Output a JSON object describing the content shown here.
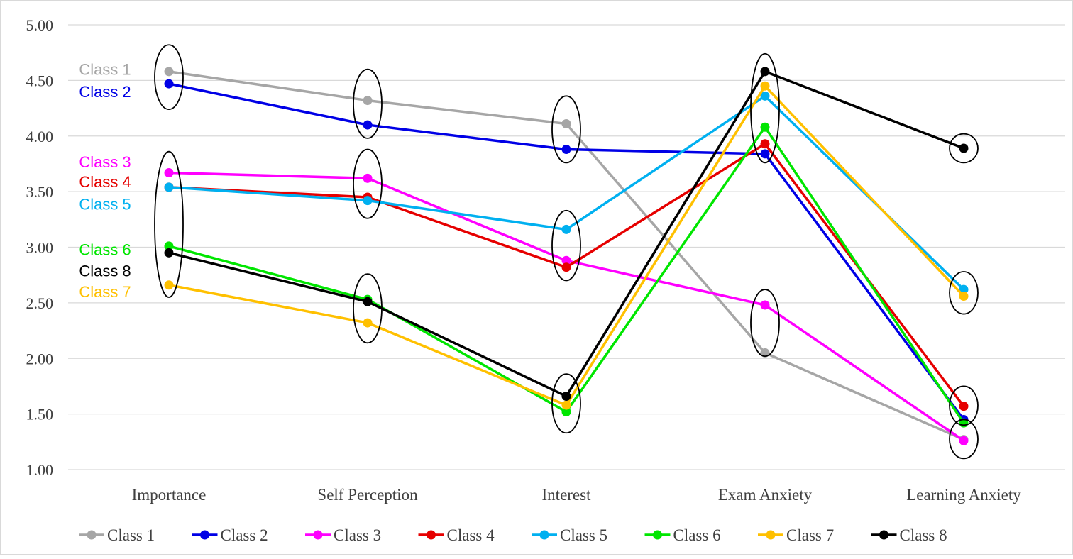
{
  "chart_data": {
    "type": "line",
    "title": "",
    "xlabel": "",
    "ylabel": "",
    "categories": [
      "Importance",
      "Self Perception",
      "Interest",
      "Exam Anxiety",
      "Learning Anxiety"
    ],
    "ylim": [
      1.0,
      5.0
    ],
    "yticks": [
      "1.00",
      "1.50",
      "2.00",
      "2.50",
      "3.00",
      "3.50",
      "4.00",
      "4.50",
      "5.00"
    ],
    "grid": true,
    "legend": "bottom",
    "series": [
      {
        "name": "Class 1",
        "color": "#a6a6a6",
        "values": [
          4.58,
          4.32,
          4.11,
          2.05,
          1.27
        ]
      },
      {
        "name": "Class 2",
        "color": "#0000e6",
        "values": [
          4.47,
          4.1,
          3.88,
          3.84,
          1.45
        ]
      },
      {
        "name": "Class 3",
        "color": "#ff00ff",
        "values": [
          3.67,
          3.62,
          2.88,
          2.48,
          1.26
        ]
      },
      {
        "name": "Class 4",
        "color": "#e60000",
        "values": [
          3.54,
          3.45,
          2.82,
          3.93,
          1.57
        ]
      },
      {
        "name": "Class 5",
        "color": "#00b0f0",
        "values": [
          3.54,
          3.42,
          3.16,
          4.36,
          2.62
        ]
      },
      {
        "name": "Class 6",
        "color": "#00e600",
        "values": [
          3.01,
          2.53,
          1.52,
          4.08,
          1.42
        ]
      },
      {
        "name": "Class 7",
        "color": "#ffc000",
        "values": [
          2.66,
          2.32,
          1.58,
          4.45,
          2.56
        ]
      },
      {
        "name": "Class 8",
        "color": "#000000",
        "values": [
          2.95,
          2.51,
          1.66,
          4.58,
          3.89
        ]
      }
    ],
    "annotations": {
      "class_labels": [
        {
          "text": "Class 1",
          "color": "#a6a6a6",
          "at_value": 4.6
        },
        {
          "text": "Class 2",
          "color": "#0000e6",
          "at_value": 4.4
        },
        {
          "text": "Class 3",
          "color": "#ff00ff",
          "at_value": 3.77
        },
        {
          "text": "Class 4",
          "color": "#e60000",
          "at_value": 3.59
        },
        {
          "text": "Class 5",
          "color": "#00b0f0",
          "at_value": 3.39
        },
        {
          "text": "Class 6",
          "color": "#00e600",
          "at_value": 2.98
        },
        {
          "text": "Class 8",
          "color": "#000000",
          "at_value": 2.79
        },
        {
          "text": "Class 7",
          "color": "#ffc000",
          "at_value": 2.6
        }
      ],
      "ellipses": [
        {
          "category": 0,
          "ymin": 4.24,
          "ymax": 4.82
        },
        {
          "category": 0,
          "ymin": 2.55,
          "ymax": 3.86
        },
        {
          "category": 1,
          "ymin": 3.98,
          "ymax": 4.6
        },
        {
          "category": 1,
          "ymin": 3.26,
          "ymax": 3.88
        },
        {
          "category": 1,
          "ymin": 2.14,
          "ymax": 2.76
        },
        {
          "category": 2,
          "ymin": 3.76,
          "ymax": 4.36
        },
        {
          "category": 2,
          "ymin": 2.7,
          "ymax": 3.33
        },
        {
          "category": 2,
          "ymin": 1.33,
          "ymax": 1.86
        },
        {
          "category": 3,
          "ymin": 3.76,
          "ymax": 4.74
        },
        {
          "category": 3,
          "ymin": 2.02,
          "ymax": 2.62
        },
        {
          "category": 4,
          "ymin": 3.76,
          "ymax": 4.02
        },
        {
          "category": 4,
          "ymin": 2.4,
          "ymax": 2.78
        },
        {
          "category": 4,
          "ymin": 1.4,
          "ymax": 1.75
        },
        {
          "category": 4,
          "ymin": 1.1,
          "ymax": 1.45
        }
      ]
    }
  }
}
